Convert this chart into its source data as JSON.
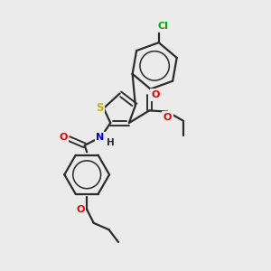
{
  "background_color": "#ebebeb",
  "bond_color": "#2b2b2b",
  "atom_colors": {
    "S": "#b8b800",
    "N": "#0000e0",
    "O": "#ee0000",
    "Cl": "#00aa00",
    "H": "#2b2b2b",
    "C": "#2b2b2b"
  },
  "bond_width": 1.6,
  "title": ""
}
